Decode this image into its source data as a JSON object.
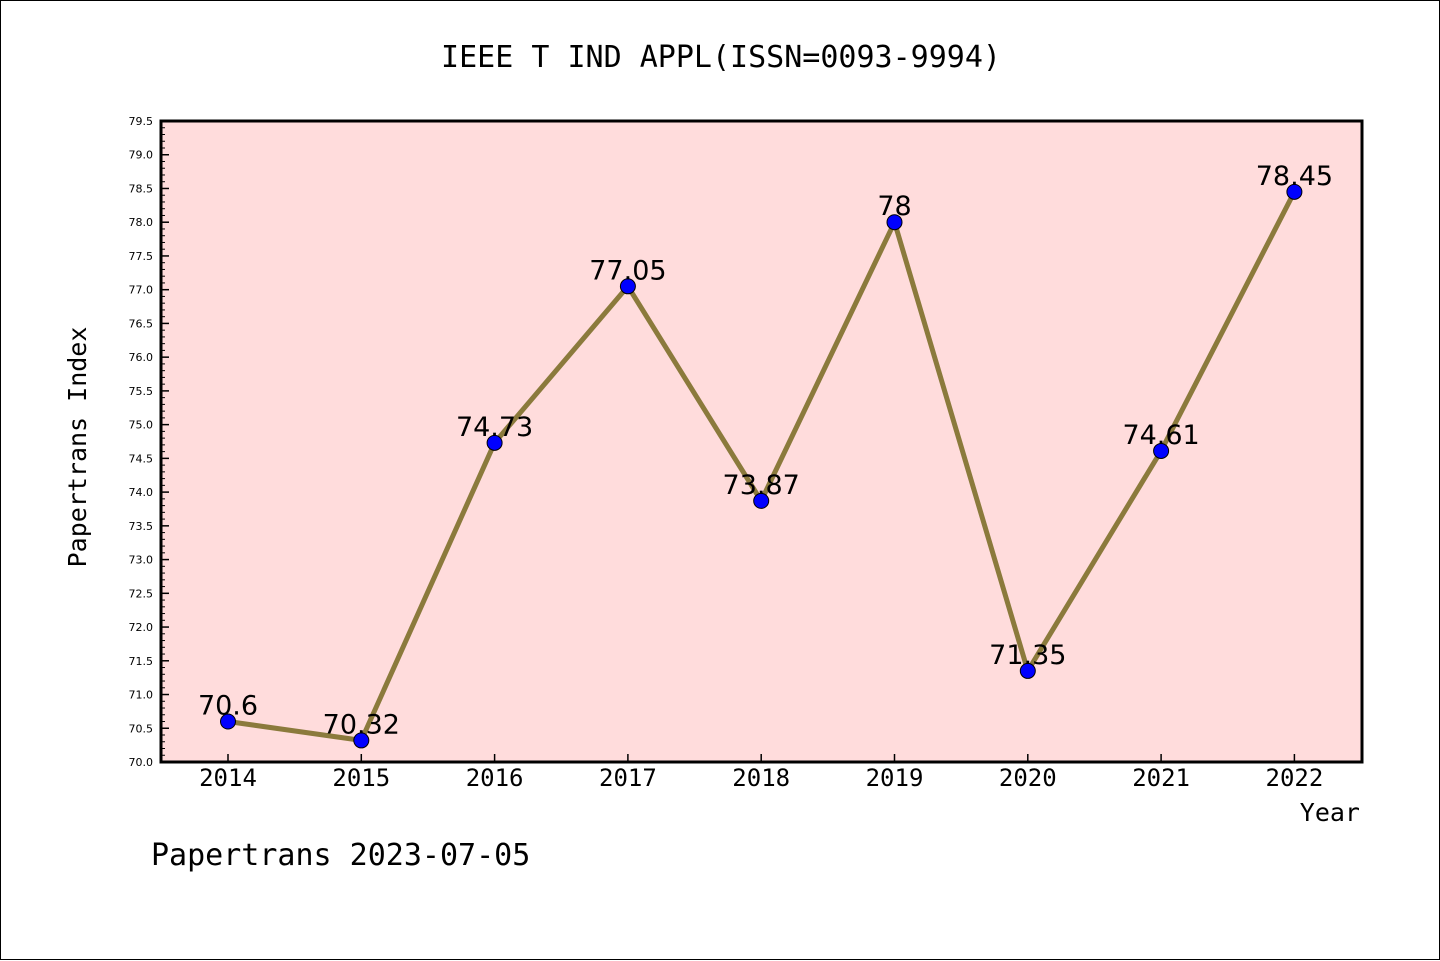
{
  "chart_data": {
    "type": "line",
    "title": "IEEE T IND APPL(ISSN=0093-9994)",
    "xlabel": "Year",
    "ylabel": "Papertrans Index",
    "categories": [
      "2014",
      "2015",
      "2016",
      "2017",
      "2018",
      "2019",
      "2020",
      "2021",
      "2022"
    ],
    "series": [
      {
        "values": [
          70.6,
          70.32,
          74.73,
          77.05,
          73.87,
          78,
          71.35,
          74.61,
          78.45
        ],
        "labels": [
          "70.6",
          "70.32",
          "74.73",
          "77.05",
          "73.87",
          "78",
          "71.35",
          "74.61",
          "78.45"
        ]
      }
    ],
    "ylim": [
      70.0,
      79.5
    ],
    "ytick_step": 0.5,
    "ytick_labels": [
      "70.0",
      "70.5",
      "71.0",
      "71.5",
      "72.0",
      "72.5",
      "73.0",
      "73.5",
      "74.0",
      "74.5",
      "75.0",
      "75.5",
      "76.0",
      "76.5",
      "77.0",
      "77.5",
      "78.0",
      "78.5",
      "79.0",
      "79.5"
    ],
    "grid": false,
    "legend": "none",
    "footer": "Papertrans 2023-07-05",
    "colors": {
      "plot_background": "#ffdcdc",
      "line": "#8b7a3c",
      "marker": "#0000ff",
      "axis": "#000000"
    }
  }
}
